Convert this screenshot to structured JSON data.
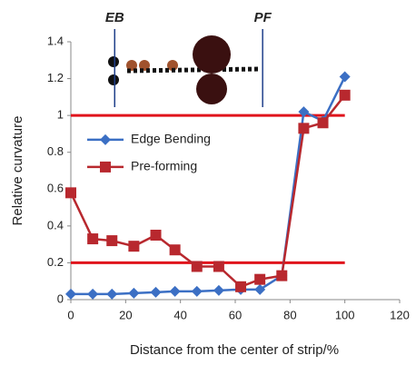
{
  "chart_data": {
    "type": "line",
    "x_label": "Distance from the center of strip/%",
    "y_label": "Relative curvature",
    "xlim": [
      0,
      120
    ],
    "xticks": [
      0,
      20,
      40,
      60,
      80,
      100,
      120
    ],
    "ylim": [
      0,
      1.4
    ],
    "yticks": [
      0,
      0.2,
      0.4,
      0.6,
      0.8,
      1,
      1.2,
      1.4
    ],
    "grid": false,
    "legend": "center left",
    "x": [
      0,
      8,
      15,
      23,
      31,
      38,
      46,
      54,
      62,
      69,
      77,
      85,
      92,
      100
    ],
    "series": [
      {
        "name": "Edge Bending",
        "color": "#3b6fc4",
        "marker": "diamond",
        "values": [
          0.03,
          0.03,
          0.03,
          0.035,
          0.04,
          0.045,
          0.045,
          0.05,
          0.055,
          0.055,
          0.13,
          1.02,
          0.97,
          1.21
        ]
      },
      {
        "name": "Pre-forming",
        "color": "#b8282e",
        "marker": "square",
        "values": [
          0.58,
          0.33,
          0.32,
          0.29,
          0.35,
          0.27,
          0.18,
          0.18,
          0.07,
          0.11,
          0.13,
          0.93,
          0.96,
          1.11
        ]
      }
    ],
    "reference_lines": [
      {
        "y": 1,
        "x": [
          0,
          100
        ],
        "color": "#e0141c"
      },
      {
        "y": 0.2,
        "x": [
          0,
          100
        ],
        "color": "#e0141c"
      }
    ],
    "annotations": [
      {
        "text": "EB",
        "x": 16
      },
      {
        "text": "PF",
        "x": 70
      }
    ]
  }
}
